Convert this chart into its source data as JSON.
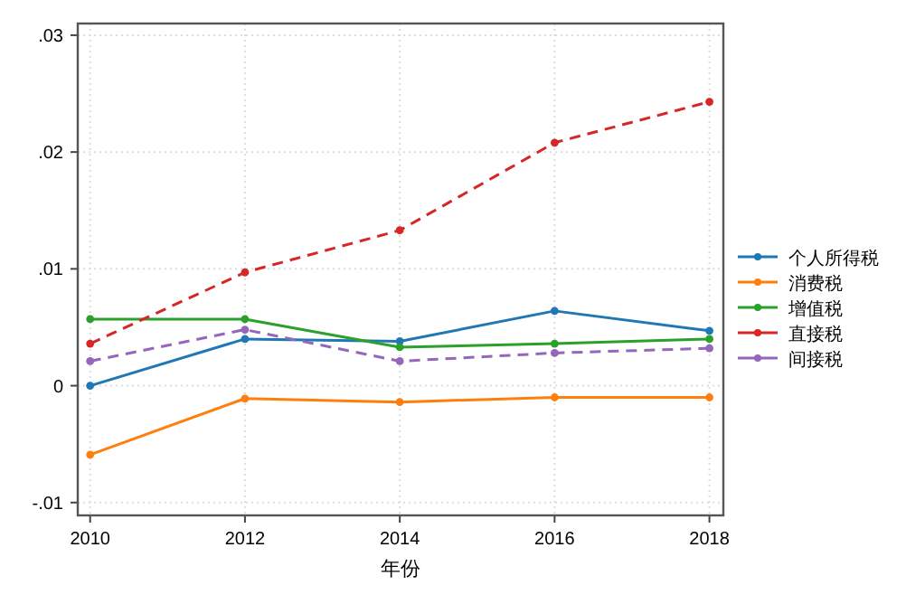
{
  "chart_data": {
    "type": "line",
    "xlabel": "年份",
    "x": [
      2010,
      2012,
      2014,
      2016,
      2018
    ],
    "xlim": [
      2009.84,
      2018.18
    ],
    "ylim": [
      -0.0111,
      0.031
    ],
    "xticks": [
      2010,
      2012,
      2014,
      2016,
      2018
    ],
    "yticks": [
      {
        "value": -0.01,
        "label": "-.01"
      },
      {
        "value": 0,
        "label": "0"
      },
      {
        "value": 0.01,
        "label": ".01"
      },
      {
        "value": 0.02,
        "label": ".02"
      },
      {
        "value": 0.03,
        "label": ".03"
      }
    ],
    "grid": true,
    "legend": "right",
    "marker": "circle",
    "series": [
      {
        "name": "个人所得税",
        "color": "#1f77b4",
        "line_style": "solid",
        "values": [
          0,
          0.004,
          0.0038,
          0.0064,
          0.0047
        ]
      },
      {
        "name": "消费税",
        "color": "#ff7f0e",
        "line_style": "solid",
        "values": [
          -0.0059,
          -0.0011,
          -0.0014,
          -0.001,
          -0.001
        ]
      },
      {
        "name": "增值税",
        "color": "#2ca02c",
        "line_style": "solid",
        "values": [
          0.0057,
          0.0057,
          0.0033,
          0.0036,
          0.004
        ]
      },
      {
        "name": "直接税",
        "color": "#d62728",
        "line_style": "dashed",
        "values": [
          0.0036,
          0.0097,
          0.0133,
          0.0208,
          0.0243
        ]
      },
      {
        "name": "间接税",
        "color": "#9467bd",
        "line_style": "dashed",
        "values": [
          0.0021,
          0.0048,
          0.0021,
          0.0028,
          0.0032
        ]
      }
    ]
  }
}
